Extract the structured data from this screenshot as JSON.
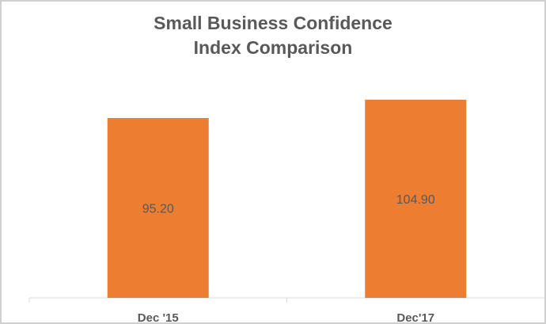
{
  "chart_data": {
    "type": "bar",
    "title_lines": [
      "Small Business Confidence",
      "Index  Comparison"
    ],
    "categories": [
      "Dec '15",
      "Dec'17"
    ],
    "values": [
      95.2,
      104.9
    ],
    "data_labels": [
      "95.20",
      "104.90"
    ],
    "xlabel": "",
    "ylabel": "",
    "ylim": [
      0,
      110
    ],
    "grid": false,
    "bar_color": "#ED7D31",
    "text_color": "#595959",
    "axis_color": "#d9d9d9"
  }
}
